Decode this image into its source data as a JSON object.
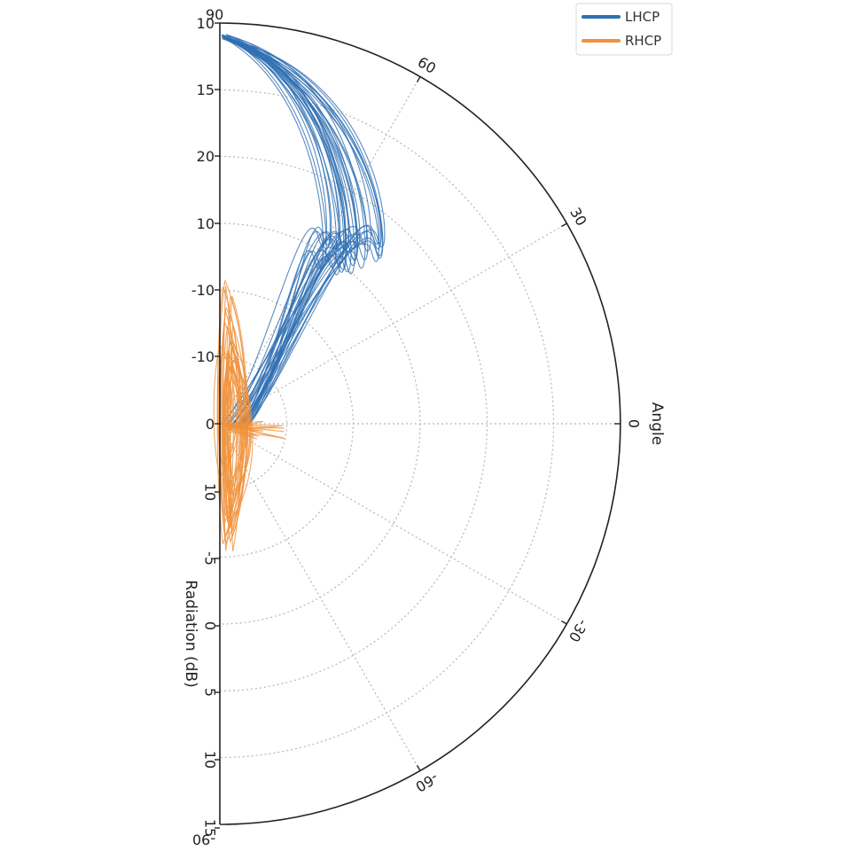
{
  "chart_data": {
    "type": "polar-line",
    "title": "",
    "angle_label": "Angle",
    "radial_label": "Radiation (dB)",
    "angle_range_deg": [
      -90,
      90
    ],
    "angle_ticks": [
      {
        "deg": 90,
        "label": "90"
      },
      {
        "deg": 60,
        "label": "60"
      },
      {
        "deg": 30,
        "label": "30"
      },
      {
        "deg": 0,
        "label": "0"
      },
      {
        "deg": -30,
        "label": "-30"
      },
      {
        "deg": -60,
        "label": "-60"
      },
      {
        "deg": -90,
        "label": "-90"
      }
    ],
    "radial_tick_labels_upper": [
      "10",
      "15",
      "20",
      "10",
      "-10",
      "-10",
      "0"
    ],
    "radial_tick_labels_lower": [
      "10",
      "-5",
      "0",
      "5",
      "10",
      "15"
    ],
    "grid": true,
    "legend": {
      "position": "top-right",
      "entries": [
        "LHCP",
        "RHCP"
      ]
    },
    "series": [
      {
        "name": "LHCP",
        "color": "#2f6fb3",
        "note_shape": "large lobe near +90 deg",
        "lobe": {
          "center_deg": 56,
          "peak_rel": 0.92,
          "width_deg": 34
        }
      },
      {
        "name": "RHCP",
        "color": "#f0913a",
        "note_shape": "small lobes near the center",
        "lobe": {
          "center_deg": 90,
          "peak_rel": 0.2,
          "width_deg": 18
        }
      }
    ]
  }
}
